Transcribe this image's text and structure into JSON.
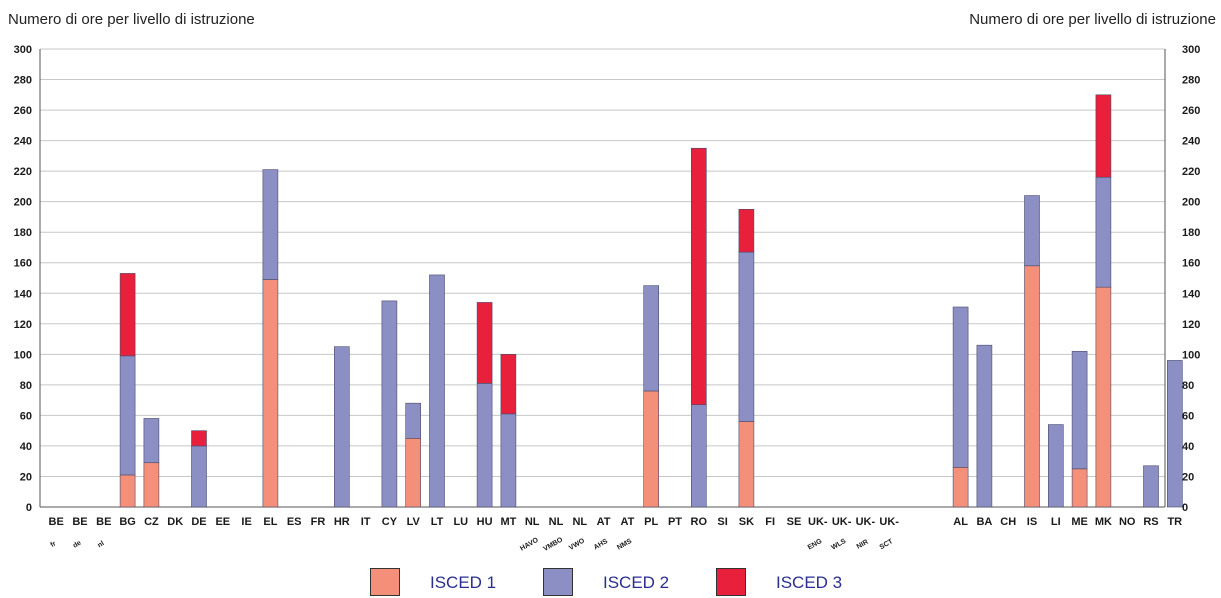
{
  "chart_data": {
    "type": "bar",
    "stacked": true,
    "title_left": "Numero di ore per livello di istruzione",
    "title_right": "Numero di ore per livello di istruzione",
    "ylim": [
      0,
      300
    ],
    "y_ticks": [
      0,
      20,
      40,
      60,
      80,
      100,
      120,
      140,
      160,
      180,
      200,
      220,
      240,
      260,
      280,
      300
    ],
    "grid": true,
    "categories": [
      {
        "label": "BE",
        "sub": "fr"
      },
      {
        "label": "BE",
        "sub": "de"
      },
      {
        "label": "BE",
        "sub": "nl"
      },
      {
        "label": "BG",
        "sub": ""
      },
      {
        "label": "CZ",
        "sub": ""
      },
      {
        "label": "DK",
        "sub": ""
      },
      {
        "label": "DE",
        "sub": ""
      },
      {
        "label": "EE",
        "sub": ""
      },
      {
        "label": "IE",
        "sub": ""
      },
      {
        "label": "EL",
        "sub": ""
      },
      {
        "label": "ES",
        "sub": ""
      },
      {
        "label": "FR",
        "sub": ""
      },
      {
        "label": "HR",
        "sub": ""
      },
      {
        "label": "IT",
        "sub": ""
      },
      {
        "label": "CY",
        "sub": ""
      },
      {
        "label": "LV",
        "sub": ""
      },
      {
        "label": "LT",
        "sub": ""
      },
      {
        "label": "LU",
        "sub": ""
      },
      {
        "label": "HU",
        "sub": ""
      },
      {
        "label": "MT",
        "sub": ""
      },
      {
        "label": "NL",
        "sub": "HAVO"
      },
      {
        "label": "NL",
        "sub": "VMBO"
      },
      {
        "label": "NL",
        "sub": "VWO"
      },
      {
        "label": "AT",
        "sub": "AHS"
      },
      {
        "label": "AT",
        "sub": "NMS"
      },
      {
        "label": "PL",
        "sub": ""
      },
      {
        "label": "PT",
        "sub": ""
      },
      {
        "label": "RO",
        "sub": ""
      },
      {
        "label": "SI",
        "sub": ""
      },
      {
        "label": "SK",
        "sub": ""
      },
      {
        "label": "FI",
        "sub": ""
      },
      {
        "label": "SE",
        "sub": ""
      },
      {
        "label": "UK-",
        "sub": "ENG"
      },
      {
        "label": "UK-",
        "sub": "WLS"
      },
      {
        "label": "UK-",
        "sub": "NIR"
      },
      {
        "label": "UK-",
        "sub": "SCT"
      },
      {
        "label": "AL",
        "sub": ""
      },
      {
        "label": "BA",
        "sub": ""
      },
      {
        "label": "CH",
        "sub": ""
      },
      {
        "label": "IS",
        "sub": ""
      },
      {
        "label": "LI",
        "sub": ""
      },
      {
        "label": "ME",
        "sub": ""
      },
      {
        "label": "MK",
        "sub": ""
      },
      {
        "label": "NO",
        "sub": ""
      },
      {
        "label": "RS",
        "sub": ""
      },
      {
        "label": "TR",
        "sub": ""
      }
    ],
    "series": [
      {
        "name": "ISCED 1",
        "color": "#f4907a",
        "values": [
          0,
          0,
          0,
          21,
          29,
          0,
          0,
          0,
          0,
          149,
          0,
          0,
          0,
          0,
          0,
          45,
          0,
          0,
          0,
          0,
          0,
          0,
          0,
          0,
          0,
          76,
          0,
          0,
          0,
          56,
          0,
          0,
          0,
          0,
          0,
          0,
          26,
          0,
          0,
          158,
          0,
          25,
          144,
          0,
          0,
          0
        ]
      },
      {
        "name": "ISCED 2",
        "color": "#8c8fc4",
        "values": [
          0,
          0,
          0,
          78,
          29,
          0,
          40,
          0,
          0,
          72,
          0,
          0,
          105,
          0,
          135,
          23,
          152,
          0,
          81,
          61,
          0,
          0,
          0,
          0,
          0,
          69,
          0,
          67,
          0,
          111,
          0,
          0,
          0,
          0,
          0,
          0,
          105,
          106,
          0,
          46,
          54,
          77,
          72,
          0,
          27,
          96
        ]
      },
      {
        "name": "ISCED 3",
        "color": "#e8203b",
        "values": [
          0,
          0,
          0,
          54,
          0,
          0,
          10,
          0,
          0,
          0,
          0,
          0,
          0,
          0,
          0,
          0,
          0,
          0,
          53,
          39,
          0,
          0,
          0,
          0,
          0,
          0,
          0,
          168,
          0,
          28,
          0,
          0,
          0,
          0,
          0,
          0,
          0,
          0,
          0,
          0,
          0,
          0,
          54,
          0,
          0,
          0
        ]
      }
    ],
    "legend": [
      "ISCED 1",
      "ISCED 2",
      "ISCED 3"
    ],
    "legend_position": "bottom-center"
  }
}
